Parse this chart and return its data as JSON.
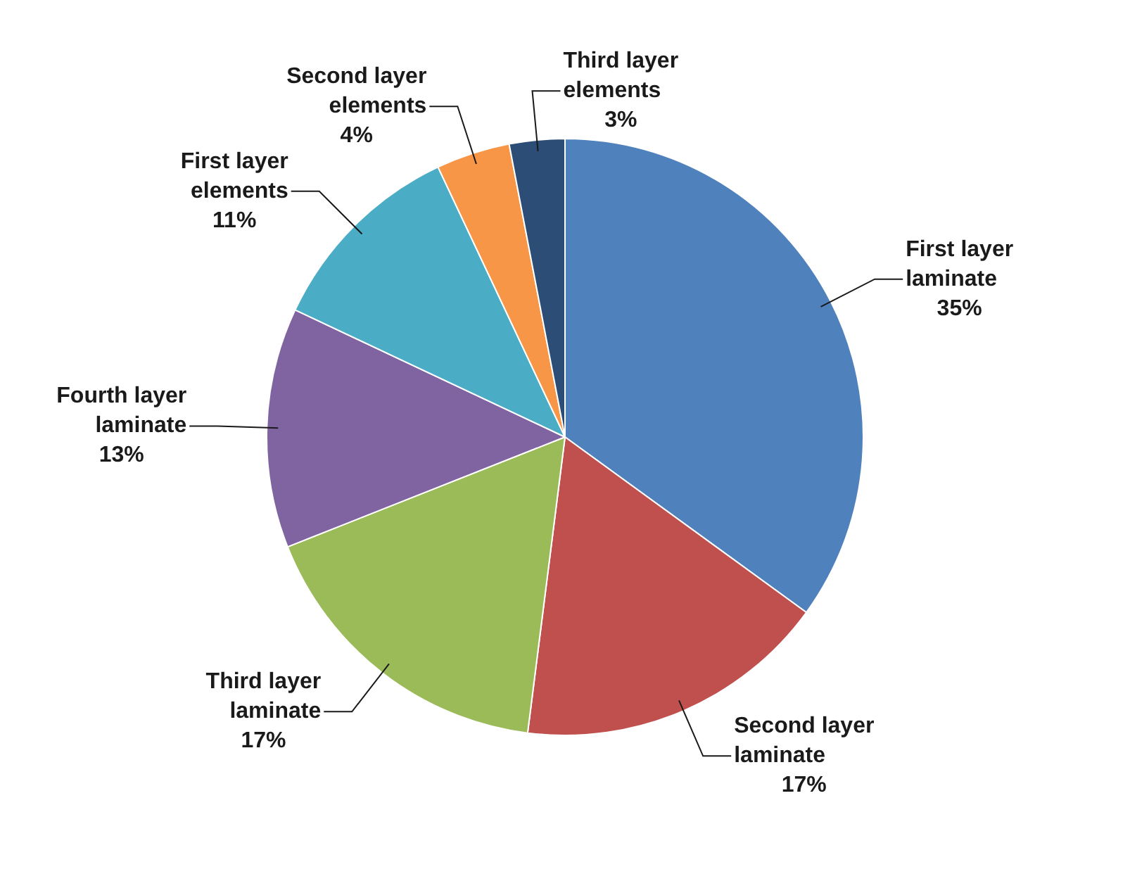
{
  "chart_data": {
    "type": "pie",
    "categories": [
      "First layer laminate",
      "Second layer laminate",
      "Third layer laminate",
      "Fourth layer laminate",
      "First layer elements",
      "Second layer elements",
      "Third layer elements"
    ],
    "values": [
      35,
      17,
      17,
      13,
      11,
      4,
      3
    ],
    "colors": [
      "#4f81bd",
      "#c0504d",
      "#9bbb59",
      "#8064a2",
      "#4bacc6",
      "#f79646",
      "#2c4d75"
    ],
    "value_labels": [
      "35%",
      "17%",
      "17%",
      "13%",
      "11%",
      "4%",
      "3%"
    ],
    "legend": false
  }
}
